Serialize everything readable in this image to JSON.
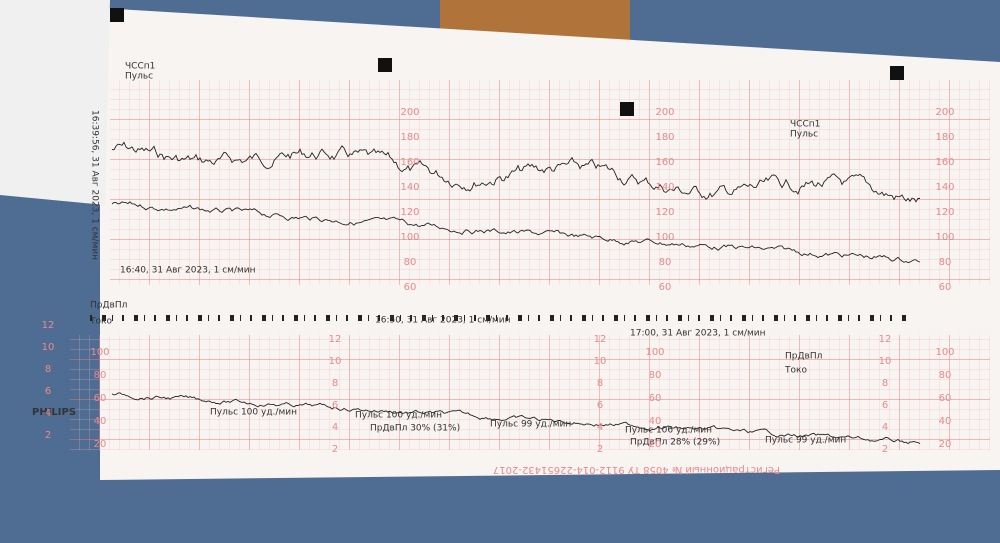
{
  "header": {
    "timestamp": "16:39:56, 31 Авг 2023, 1 см/мин",
    "brand": "PHILIPS"
  },
  "fhr_legend": {
    "channel1": "ЧССп1",
    "channel2": "Пульс"
  },
  "fhr_scale": [
    "200",
    "180",
    "160",
    "140",
    "120",
    "100",
    "80",
    "60"
  ],
  "toco_legend": {
    "channel1": "ПрДвПл",
    "channel2": "Токо"
  },
  "toco_scale_left": [
    "12",
    "10",
    "8",
    "6",
    "4",
    "2"
  ],
  "toco_scale_right": [
    "100",
    "80",
    "60",
    "40",
    "20"
  ],
  "time_marks": [
    "16:40, 31 Авг 2023, 1 см/мин",
    "16:50, 31 Авг 2023, 1 см/мин",
    "17:00, 31 Авг 2023, 1 см/мин"
  ],
  "annotations": [
    "Пульс 100 уд./мин",
    "Пульс 100 уд./мин",
    "Пульс 99 уд./мин",
    "Пульс 106 уд./мин",
    "Пульс 99 уд./мин",
    "ПрДвПл 30% (31%)",
    "ПрДвПл 28% (29%)"
  ],
  "footer": "Регистрационный № 4058  ТУ 9112-014-22651432-2017"
}
